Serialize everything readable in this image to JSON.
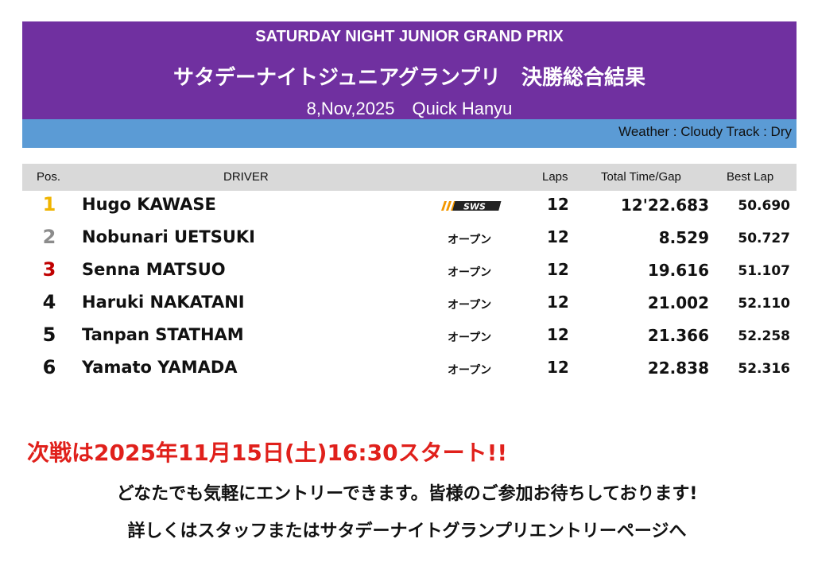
{
  "header": {
    "title_en": "SATURDAY NIGHT JUNIOR GRAND PRIX",
    "title_jp": "サタデーナイトジュニアグランプリ　決勝総合結果",
    "subtitle": "8,Nov,2025　Quick Hanyu",
    "conditions": "Weather : Cloudy  Track : Dry"
  },
  "colors": {
    "banner": "#7030a0",
    "condition_bar": "#5b9bd5",
    "p1": "#f0b400",
    "p2": "#8c8c8c",
    "p3": "#c00000",
    "notice": "#e0201b"
  },
  "table": {
    "columns": [
      "Pos.",
      "DRIVER",
      "Laps",
      "Total Time/Gap",
      "Best Lap"
    ],
    "rows": [
      {
        "pos": "1",
        "driver": "Hugo KAWASE",
        "team": "SWS",
        "laps": "12",
        "total": "12'22.683",
        "best": "50.690"
      },
      {
        "pos": "2",
        "driver": "Nobunari UETSUKI",
        "team": "オープン",
        "laps": "12",
        "total": "8.529",
        "best": "50.727"
      },
      {
        "pos": "3",
        "driver": "Senna MATSUO",
        "team": "オープン",
        "laps": "12",
        "total": "19.616",
        "best": "51.107"
      },
      {
        "pos": "4",
        "driver": "Haruki NAKATANI",
        "team": "オープン",
        "laps": "12",
        "total": "21.002",
        "best": "52.110"
      },
      {
        "pos": "5",
        "driver": "Tanpan STATHAM",
        "team": "オープン",
        "laps": "12",
        "total": "21.366",
        "best": "52.258"
      },
      {
        "pos": "6",
        "driver": "Yamato YAMADA",
        "team": "オープン",
        "laps": "12",
        "total": "22.838",
        "best": "52.316"
      }
    ]
  },
  "footer": {
    "next": "次戦は2025年11月15日(土)16:30スタート!!",
    "line2": "どなたでも気軽にエントリーできます。皆様のご参加お待ちしております!",
    "line3": "詳しくはスタッフまたはサタデーナイトグランプリエントリーページへ"
  }
}
